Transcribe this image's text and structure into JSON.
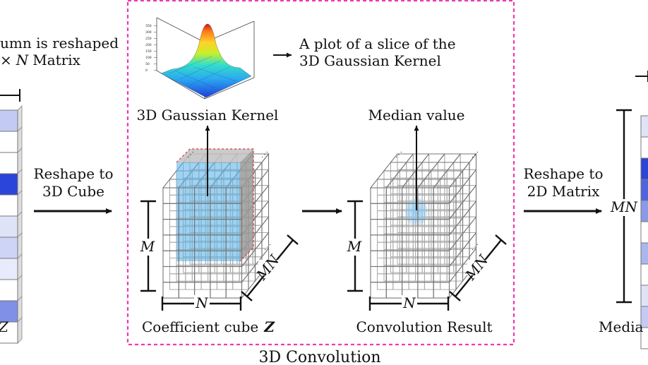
{
  "left_panel": {
    "caption_line1": "umn is reshaped",
    "caption_line2_prefix": "×",
    "caption_line2_var": "N",
    "caption_line2_suffix": "Matrix",
    "bottom_label": "Z",
    "cell_colors": [
      "#c3cbf4",
      "#ffffff",
      "#ffffff",
      "#2b44d9",
      "#ffffff",
      "#dfe3f8",
      "#cdd4f5",
      "#e8ebfb",
      "#ffffff",
      "#7f90e6",
      "#ffffff"
    ]
  },
  "arrow_reshape_cube": {
    "line1": "Reshape to",
    "line2": "3D Cube"
  },
  "convolution_box": {
    "title": "3D Convolution",
    "border_color": "#ee3ab2",
    "kernel_plot_caption_line1": "A plot of a slice of the",
    "kernel_plot_caption_line2": "3D Gaussian Kernel",
    "kernel_label": "3D Gaussian Kernel",
    "kernel_plot_yticks": [
      "350",
      "300",
      "250",
      "200",
      "150",
      "100",
      "50",
      "0"
    ],
    "coefficient_cube_label": "Coefficient cube",
    "coefficient_cube_symbol": "Z",
    "median_label": "Median value",
    "result_label": "Convolution Result",
    "dim_M": "M",
    "dim_N": "N",
    "dim_MN": "MN",
    "highlight_color": "#5fb5e8",
    "kernel_box_color": "#d33"
  },
  "arrow_reshape_matrix": {
    "line1": "Reshape to",
    "line2": "2D Matrix"
  },
  "right_panel": {
    "dim_MN": "MN",
    "bottom_label": "Media",
    "cell_colors": [
      "#dfe3f8",
      "#ffffff",
      "#2b44d9",
      "#4f64dd",
      "#8a9ae6",
      "#ffffff",
      "#aab6ee",
      "#ffffff",
      "#dfe3f8",
      "#c3cbf4",
      "#ffffff"
    ]
  }
}
